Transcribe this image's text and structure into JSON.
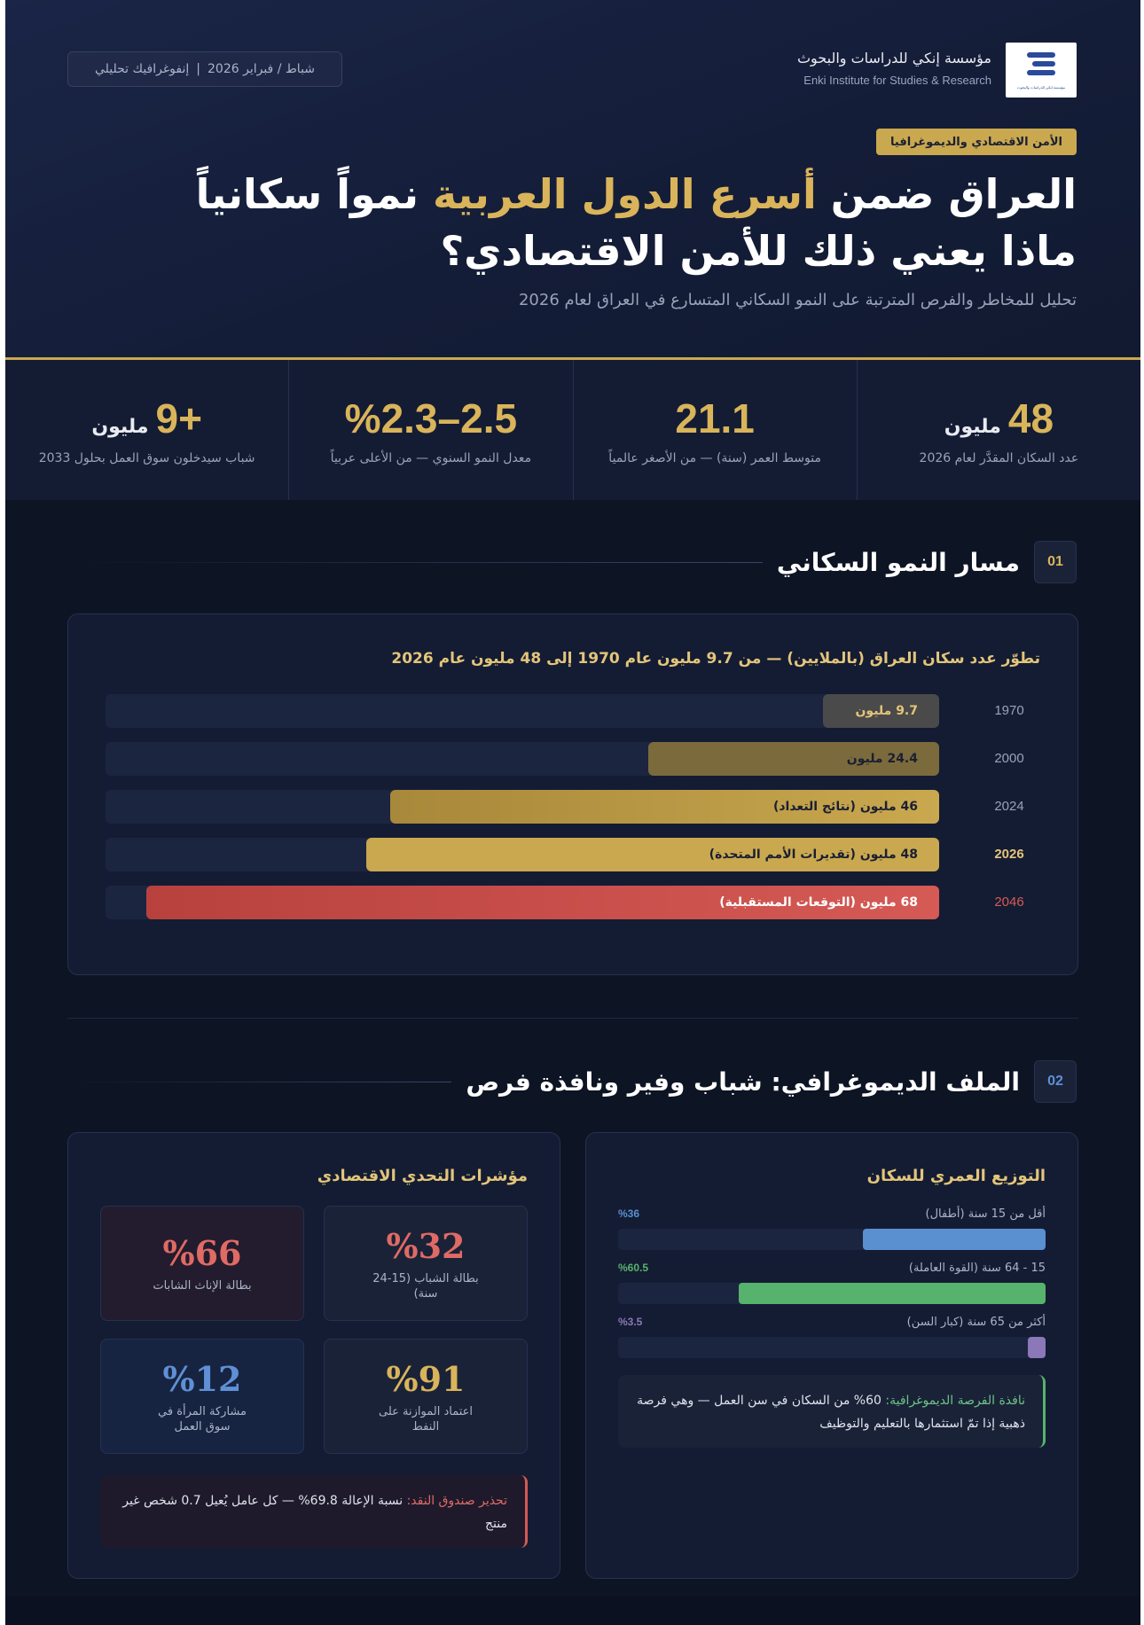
{
  "header": {
    "org_name_ar": "مؤسسة إنكي للدراسات والبحوث",
    "org_name_en": "Enki Institute for Studies & Research",
    "logo_caption": "مؤسسة إنكي للدراسات والبحوث",
    "date_label": "شباط / فبراير 2026",
    "date_separator": "|",
    "type_label": "إنفوغرافيك تحليلي",
    "category": "الأمن الاقتصادي والديموغرافيا",
    "title_line1_part1": "العراق ضمن",
    "title_line1_highlight": "أسرع الدول العربية",
    "title_line1_part2": "نمواً سكانياً",
    "title_line2": "ماذا يعني ذلك للأمن الاقتصادي؟",
    "subtitle": "تحليل للمخاطر والفرص المترتبة على النمو السكاني المتسارع في العراق لعام 2026"
  },
  "stats": [
    {
      "value": "48",
      "unit": "مليون",
      "label": "عدد السكان المقدَّر لعام 2026"
    },
    {
      "value": "21.1",
      "unit": "",
      "label": "متوسط العمر (سنة) — من الأصغر عالمياً"
    },
    {
      "value": "2.5–%2.3",
      "unit": "",
      "label": "معدل النمو السنوي — من الأعلى عربياً"
    },
    {
      "value": "+9",
      "unit": "مليون",
      "label": "شباب سيدخلون سوق العمل بحلول 2033"
    }
  ],
  "section1": {
    "number": "01",
    "title": "مسار النمو السكاني"
  },
  "chart_data": {
    "type": "bar",
    "orientation": "horizontal",
    "title": "تطوّر عدد سكان العراق (بالملايين) — من 9.7 مليون عام 1970 إلى 48 مليون عام 2026",
    "categories": [
      "1970",
      "2000",
      "2024",
      "2026",
      "2046"
    ],
    "values": [
      9.7,
      24.4,
      46,
      48,
      68
    ],
    "labels": [
      "9.7 مليون",
      "24.4 مليون",
      "46 مليون (نتائج التعداد)",
      "48 مليون (تقديرات الأمم المتحدة)",
      "68 مليون (التوقعات المستقبلية)"
    ],
    "xlim": [
      0,
      70
    ],
    "colors": [
      "#4a4a4a",
      "#7b6a3c",
      "#c9a84f",
      "#c9a84f",
      "#d55a55"
    ]
  },
  "section2": {
    "number": "02",
    "title": "الملف الديموغرافي: شباب وفير ونافذة فرص"
  },
  "age_distribution": {
    "title": "التوزيع العمري للسكان",
    "groups": [
      {
        "label": "أقل من 15 سنة (أطفال)",
        "percent_label": "%36",
        "value": 36,
        "color": "#5a8fd0"
      },
      {
        "label": "15 - 64 سنة (القوة العاملة)",
        "percent_label": "%60.5",
        "value": 60.5,
        "color": "#56b26c"
      },
      {
        "label": "أكثر من 65 سنة (كبار السن)",
        "percent_label": "%3.5",
        "value": 3.5,
        "color": "#8a78b8"
      }
    ],
    "note_highlight": "نافذة الفرصة الديموغرافية:",
    "note_text": "60% من السكان في سن العمل — وهي فرصة ذهبية إذا تمّ استثمارها بالتعليم والتوظيف"
  },
  "indicators": {
    "title": "مؤشرات التحدي الاقتصادي",
    "items": [
      {
        "value": "%32",
        "label": "بطالة الشباب (15-24 سنة)",
        "color": "#e06a64"
      },
      {
        "value": "%66",
        "label": "بطالة الإناث الشابات",
        "color": "#e06a64"
      },
      {
        "value": "%91",
        "label": "اعتماد الموازنة على النفط",
        "color": "#d9b45a"
      },
      {
        "value": "%12",
        "label": "مشاركة المرأة في سوق العمل",
        "color": "#5f90d6"
      }
    ],
    "warning_highlight": "تحذير صندوق النقد:",
    "warning_text": "نسبة الإعالة 69.8% — كل عامل يُعيل 0.7 شخص غير منتج"
  }
}
